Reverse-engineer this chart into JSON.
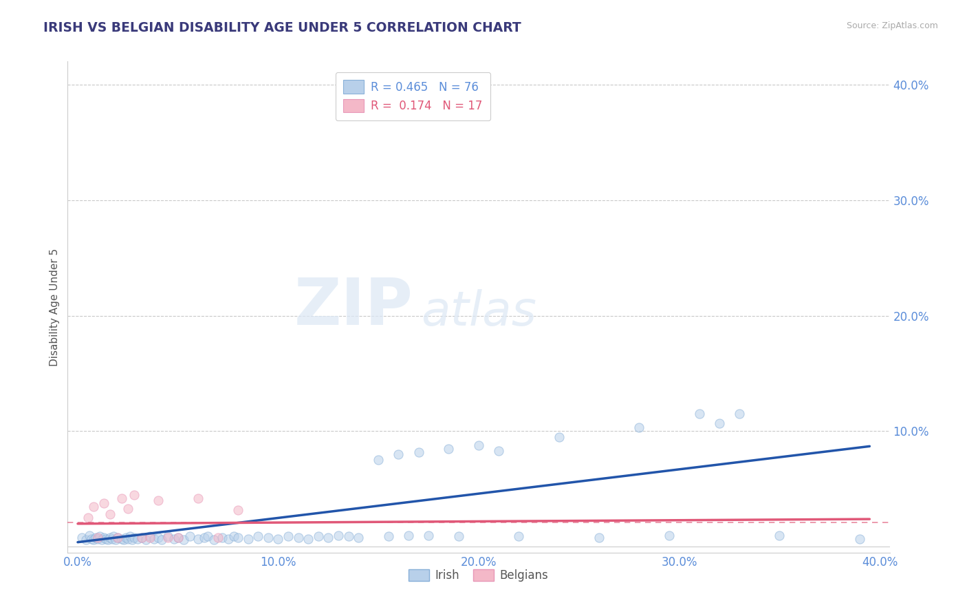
{
  "title": "IRISH VS BELGIAN DISABILITY AGE UNDER 5 CORRELATION CHART",
  "source_text": "Source: ZipAtlas.com",
  "ylabel": "Disability Age Under 5",
  "xlim": [
    -0.005,
    0.405
  ],
  "ylim": [
    -0.005,
    0.42
  ],
  "xticks": [
    0.0,
    0.1,
    0.2,
    0.3,
    0.4
  ],
  "yticks": [
    0.1,
    0.2,
    0.3,
    0.4
  ],
  "xtick_labels": [
    "0.0%",
    "10.0%",
    "20.0%",
    "30.0%",
    "40.0%"
  ],
  "ytick_labels": [
    "10.0%",
    "20.0%",
    "30.0%",
    "40.0%"
  ],
  "title_color": "#3a3a7a",
  "tick_color": "#5b8dd9",
  "axis_color": "#bbbbbb",
  "grid_color": "#bbbbbb",
  "watermark_zip": "ZIP",
  "watermark_atlas": "atlas",
  "irish_color": "#b8d0ea",
  "irish_edge_color": "#88b0d8",
  "belgian_color": "#f4b8c8",
  "belgian_edge_color": "#e898b8",
  "irish_line_color": "#2255aa",
  "belgian_line_color": "#e05878",
  "legend_text_irish": "R = 0.465   N = 76",
  "legend_text_belgian": "R =  0.174   N = 17",
  "legend_color_irish": "#5b8dd9",
  "legend_color_belgian": "#e05878",
  "irish_scatter_x": [
    0.002,
    0.004,
    0.006,
    0.007,
    0.008,
    0.009,
    0.01,
    0.011,
    0.012,
    0.013,
    0.014,
    0.015,
    0.016,
    0.017,
    0.018,
    0.019,
    0.02,
    0.022,
    0.023,
    0.024,
    0.025,
    0.026,
    0.027,
    0.028,
    0.03,
    0.032,
    0.034,
    0.036,
    0.038,
    0.04,
    0.042,
    0.045,
    0.048,
    0.05,
    0.053,
    0.056,
    0.06,
    0.063,
    0.065,
    0.068,
    0.072,
    0.075,
    0.078,
    0.08,
    0.085,
    0.09,
    0.095,
    0.1,
    0.105,
    0.11,
    0.115,
    0.12,
    0.125,
    0.13,
    0.135,
    0.14,
    0.15,
    0.155,
    0.16,
    0.165,
    0.17,
    0.175,
    0.185,
    0.19,
    0.2,
    0.21,
    0.22,
    0.24,
    0.26,
    0.28,
    0.295,
    0.31,
    0.32,
    0.33,
    0.35,
    0.39
  ],
  "irish_scatter_y": [
    0.008,
    0.006,
    0.01,
    0.007,
    0.006,
    0.008,
    0.007,
    0.009,
    0.006,
    0.008,
    0.007,
    0.006,
    0.008,
    0.007,
    0.009,
    0.006,
    0.008,
    0.007,
    0.006,
    0.008,
    0.007,
    0.009,
    0.006,
    0.008,
    0.007,
    0.008,
    0.006,
    0.009,
    0.007,
    0.008,
    0.006,
    0.009,
    0.007,
    0.008,
    0.006,
    0.009,
    0.007,
    0.008,
    0.009,
    0.006,
    0.008,
    0.007,
    0.009,
    0.008,
    0.007,
    0.009,
    0.008,
    0.007,
    0.009,
    0.008,
    0.007,
    0.009,
    0.008,
    0.01,
    0.009,
    0.008,
    0.075,
    0.009,
    0.08,
    0.01,
    0.082,
    0.01,
    0.085,
    0.009,
    0.088,
    0.083,
    0.009,
    0.095,
    0.008,
    0.103,
    0.01,
    0.115,
    0.107,
    0.115,
    0.01,
    0.007
  ],
  "belgian_scatter_x": [
    0.005,
    0.008,
    0.01,
    0.013,
    0.016,
    0.02,
    0.022,
    0.025,
    0.028,
    0.032,
    0.036,
    0.04,
    0.045,
    0.05,
    0.06,
    0.07,
    0.08
  ],
  "belgian_scatter_y": [
    0.025,
    0.035,
    0.008,
    0.038,
    0.028,
    0.008,
    0.042,
    0.033,
    0.045,
    0.008,
    0.008,
    0.04,
    0.008,
    0.008,
    0.042,
    0.008,
    0.032
  ],
  "irish_line_x": [
    0.0,
    0.395
  ],
  "irish_line_y": [
    0.004,
    0.087
  ],
  "belgian_line_x": [
    0.0,
    0.395
  ],
  "belgian_line_y": [
    0.02,
    0.024
  ],
  "marker_size": 90,
  "marker_alpha": 0.55,
  "line_width": 2.5
}
